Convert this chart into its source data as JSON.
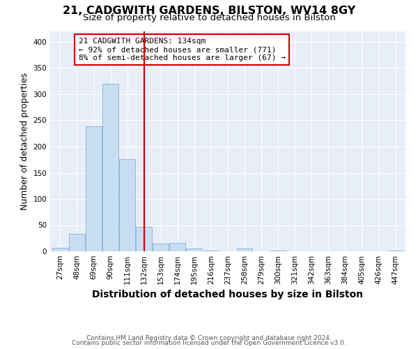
{
  "title_line1": "21, CADGWITH GARDENS, BILSTON, WV14 8GY",
  "title_line2": "Size of property relative to detached houses in Bilston",
  "xlabel": "Distribution of detached houses by size in Bilston",
  "ylabel": "Number of detached properties",
  "bar_values": [
    7,
    33,
    238,
    320,
    176,
    47,
    15,
    16,
    5,
    1,
    0,
    5,
    0,
    2,
    0,
    0,
    0,
    0,
    0,
    0,
    2
  ],
  "bin_labels": [
    "27sqm",
    "48sqm",
    "69sqm",
    "90sqm",
    "111sqm",
    "132sqm",
    "153sqm",
    "174sqm",
    "195sqm",
    "216sqm",
    "237sqm",
    "258sqm",
    "279sqm",
    "300sqm",
    "321sqm",
    "342sqm",
    "363sqm",
    "384sqm",
    "405sqm",
    "426sqm",
    "447sqm"
  ],
  "bar_color": "#c9ddf2",
  "bar_edge_color": "#7ab3d9",
  "vline_x": 5,
  "vline_color": "#cc0000",
  "annotation_text_line1": "21 CADGWITH GARDENS: 134sqm",
  "annotation_text_line2": "← 92% of detached houses are smaller (771)",
  "annotation_text_line3": "8% of semi-detached houses are larger (67) →",
  "annotation_box_color": "#cc0000",
  "ylim": [
    0,
    420
  ],
  "yticks": [
    0,
    50,
    100,
    150,
    200,
    250,
    300,
    350,
    400
  ],
  "plot_bg_color": "#e8eef8",
  "footer_line1": "Contains HM Land Registry data © Crown copyright and database right 2024.",
  "footer_line2": "Contains public sector information licensed under the Open Government Licence v3.0.",
  "title_fontsize": 11.5,
  "subtitle_fontsize": 9.5,
  "xlabel_fontsize": 10,
  "ylabel_fontsize": 9,
  "tick_fontsize": 7.5,
  "footer_fontsize": 6.5,
  "annotation_fontsize": 8
}
